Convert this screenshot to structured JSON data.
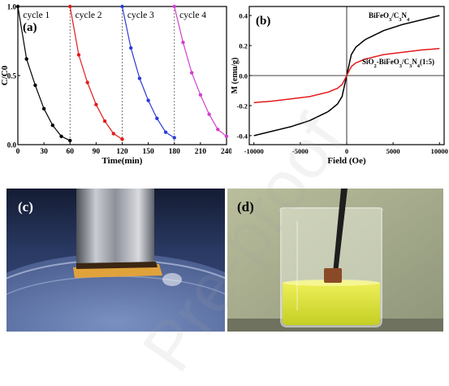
{
  "chart_data": [
    {
      "panel": "(a)",
      "type": "line",
      "xlabel": "Time(min)",
      "ylabel": "C/C0",
      "xlim": [
        0,
        240
      ],
      "ylim": [
        0,
        1
      ],
      "xticks": [
        "0",
        "30",
        "60",
        "90",
        "120",
        "150",
        "180",
        "210",
        "240"
      ],
      "yticks": [
        "0.0",
        "0.5",
        "1.0"
      ],
      "cycle_labels": [
        "cycle 1",
        "cycle 2",
        "cycle 3",
        "cycle 4"
      ],
      "cycle_dividers": [
        60,
        120,
        180
      ],
      "series": [
        {
          "name": "cycle 1",
          "color": "#000000",
          "x": [
            0,
            10,
            20,
            30,
            40,
            50,
            60
          ],
          "y": [
            1.0,
            0.62,
            0.43,
            0.26,
            0.14,
            0.06,
            0.03
          ]
        },
        {
          "name": "cycle 2",
          "color": "#e41a1c",
          "x": [
            60,
            70,
            80,
            90,
            100,
            110,
            120
          ],
          "y": [
            1.0,
            0.65,
            0.45,
            0.29,
            0.17,
            0.08,
            0.04
          ]
        },
        {
          "name": "cycle 3",
          "color": "#2b3bd4",
          "x": [
            120,
            130,
            140,
            150,
            160,
            170,
            180
          ],
          "y": [
            1.0,
            0.7,
            0.48,
            0.32,
            0.19,
            0.09,
            0.05
          ]
        },
        {
          "name": "cycle 4",
          "color": "#d13fd0",
          "x": [
            180,
            190,
            200,
            210,
            220,
            230,
            240
          ],
          "y": [
            1.0,
            0.74,
            0.52,
            0.36,
            0.22,
            0.11,
            0.06
          ]
        }
      ]
    },
    {
      "panel": "(b)",
      "type": "line",
      "xlabel": "Field (Oe)",
      "ylabel": "M (emu/g)",
      "xlim": [
        -10500,
        10500
      ],
      "ylim": [
        -0.46,
        0.46
      ],
      "xticks": [
        "-10000",
        "-5000",
        "0",
        "5000",
        "10000"
      ],
      "yticks": [
        "-0.4",
        "-0.2",
        "0.0",
        "0.2",
        "0.4"
      ],
      "series": [
        {
          "name": "BiFeO3/C3N4",
          "color": "#000000",
          "x": [
            -10000,
            -8000,
            -6000,
            -4000,
            -2000,
            -1000,
            -500,
            0,
            500,
            1000,
            2000,
            4000,
            6000,
            8000,
            10000
          ],
          "y": [
            -0.4,
            -0.37,
            -0.34,
            -0.3,
            -0.24,
            -0.19,
            -0.14,
            0.0,
            0.14,
            0.19,
            0.24,
            0.3,
            0.34,
            0.37,
            0.4
          ]
        },
        {
          "name": "SiO2-BiFeO3/C3N4(1:5)",
          "color": "#e41a1c",
          "x": [
            -10000,
            -8000,
            -6000,
            -4000,
            -2000,
            -1000,
            -500,
            0,
            500,
            1000,
            2000,
            4000,
            6000,
            8000,
            10000
          ],
          "y": [
            -0.18,
            -0.17,
            -0.155,
            -0.14,
            -0.11,
            -0.085,
            -0.06,
            0.0,
            0.06,
            0.085,
            0.11,
            0.14,
            0.155,
            0.17,
            0.18
          ]
        }
      ]
    }
  ],
  "photos": {
    "c_label": "(c)",
    "d_label": "(d)"
  },
  "watermark": "Pre-proof"
}
